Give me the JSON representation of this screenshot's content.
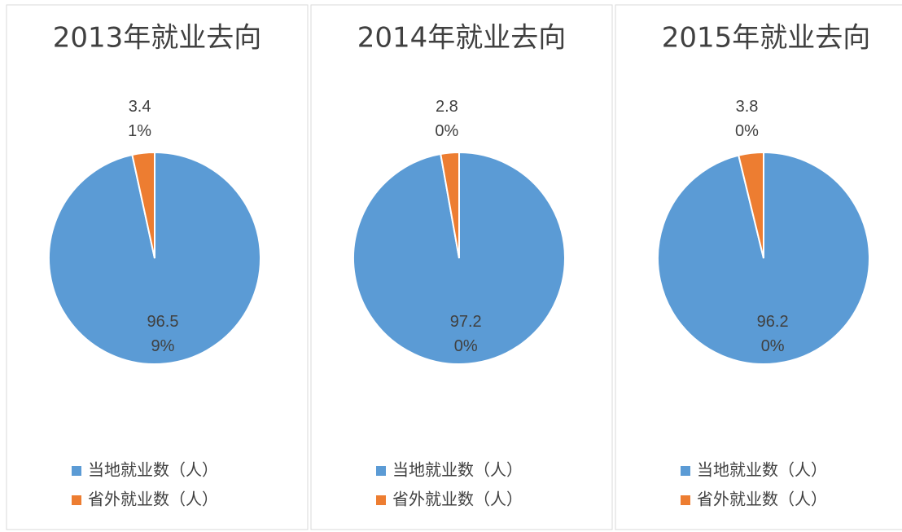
{
  "chart_data": [
    {
      "type": "pie",
      "title": "2013年就业去向",
      "categories": [
        "当地就业数（人）",
        "省外就业数（人）"
      ],
      "values": [
        96.59,
        3.41
      ],
      "value_labels": [
        "96.59%",
        "3.41%"
      ],
      "colors": [
        "#5b9bd5",
        "#ed7d31"
      ]
    },
    {
      "type": "pie",
      "title": "2014年就业去向",
      "categories": [
        "当地就业数（人）",
        "省外就业数（人）"
      ],
      "values": [
        97.2,
        2.8
      ],
      "value_labels": [
        "97.20%",
        "2.80%"
      ],
      "colors": [
        "#5b9bd5",
        "#ed7d31"
      ]
    },
    {
      "type": "pie",
      "title": "2015年就业去向",
      "categories": [
        "当地就业数（人）",
        "省外就业数（人）"
      ],
      "values": [
        96.2,
        3.8
      ],
      "value_labels": [
        "96.20%",
        "3.80%"
      ],
      "colors": [
        "#5b9bd5",
        "#ed7d31"
      ]
    }
  ]
}
